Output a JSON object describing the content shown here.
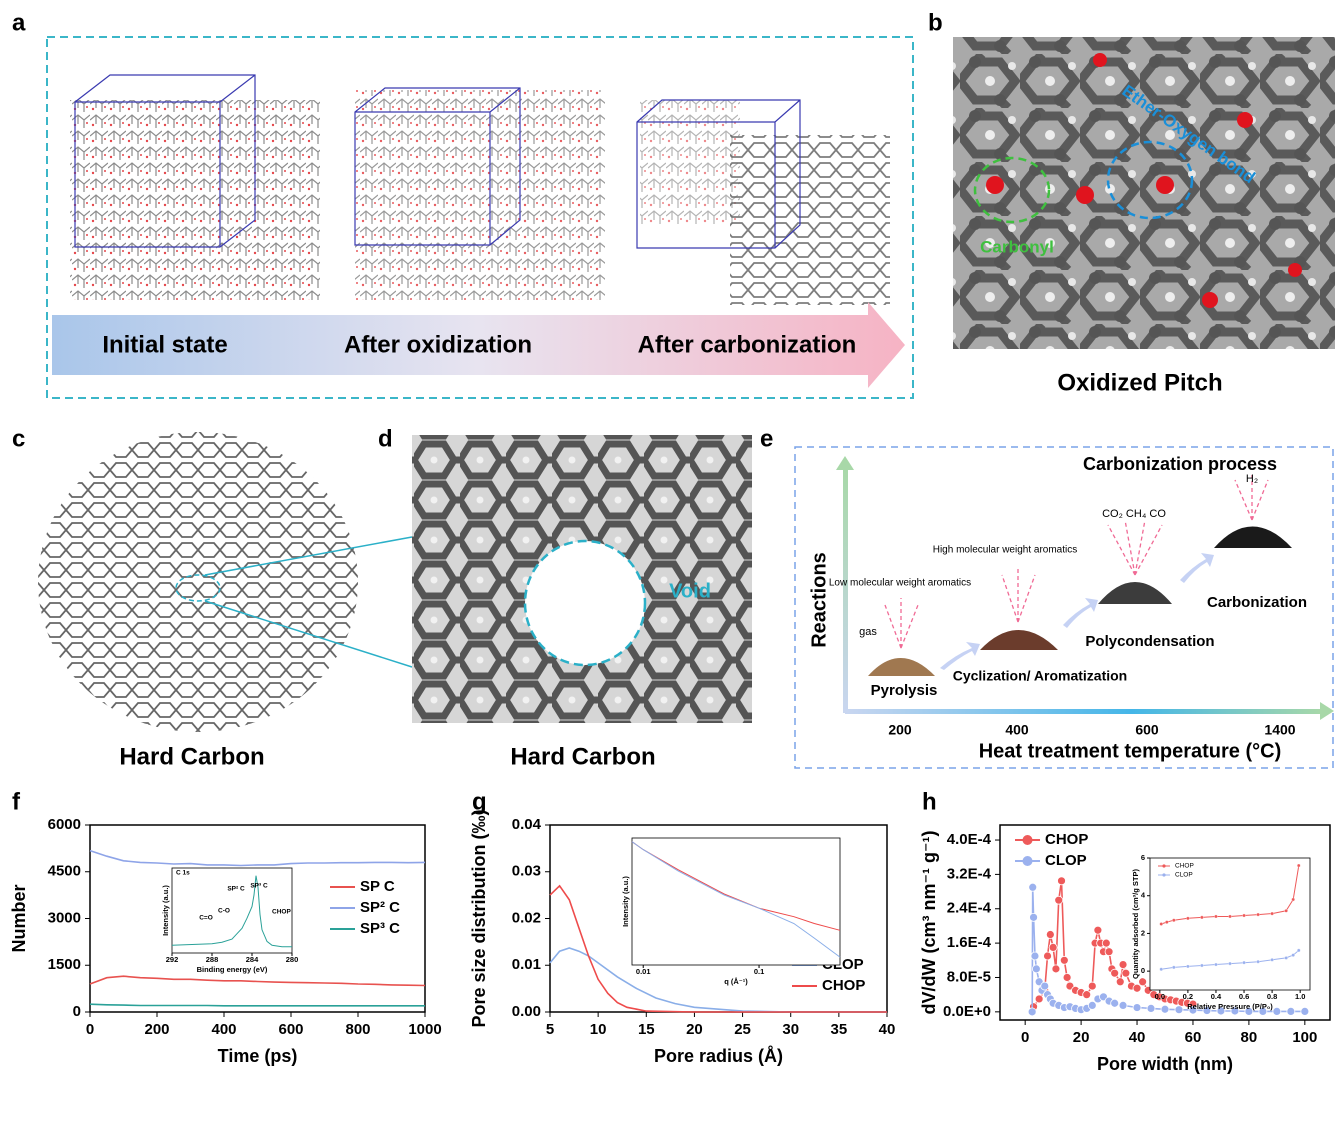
{
  "panels": {
    "a": {
      "label": "a",
      "stages": [
        "Initial state",
        "After oxidization",
        "After carbonization"
      ]
    },
    "b": {
      "label": "b",
      "annotations": [
        "Ether-Oxygen bond",
        "Carbonyl"
      ],
      "caption": "Oxidized Pitch"
    },
    "c": {
      "label": "c",
      "caption": "Hard Carbon"
    },
    "d": {
      "label": "d",
      "annotation": "Void",
      "caption": "Hard Carbon"
    },
    "e": {
      "label": "e",
      "title": "Carbonization process",
      "ylabel": "Reactions",
      "xlabel": "Heat treatment temperature (°C)",
      "xticks": [
        200,
        400,
        600,
        1400
      ],
      "stages": [
        "Pyrolysis",
        "Cyclization/ Aromatization",
        "Polycondensation",
        "Carbonization"
      ],
      "releases": [
        "gas",
        "Low molecular weight aromatics",
        "High molecular weight aromatics",
        "CO₂ CH₄ CO",
        "H₂"
      ]
    }
  },
  "chart_data": [
    {
      "type": "line",
      "label": "f",
      "xlabel": "Time (ps)",
      "ylabel": "Number",
      "xlim": [
        0,
        1000
      ],
      "ylim": [
        0,
        6000
      ],
      "xticks": [
        0,
        200,
        400,
        600,
        800,
        1000
      ],
      "yticks": [
        0,
        1500,
        3000,
        4500,
        6000
      ],
      "legend": "center right",
      "series": [
        {
          "name": "SP C",
          "color": "#e8524f",
          "x": [
            0,
            50,
            100,
            150,
            200,
            250,
            300,
            350,
            400,
            450,
            500,
            550,
            600,
            650,
            700,
            750,
            800,
            850,
            900,
            950,
            1000
          ],
          "values": [
            900,
            1100,
            1150,
            1100,
            1080,
            1050,
            1050,
            1020,
            1000,
            1000,
            980,
            960,
            950,
            940,
            930,
            920,
            900,
            890,
            870,
            860,
            850
          ]
        },
        {
          "name": "SP² C",
          "color": "#8ea4e8",
          "x": [
            0,
            50,
            100,
            150,
            200,
            250,
            300,
            350,
            400,
            450,
            500,
            550,
            600,
            650,
            700,
            750,
            800,
            850,
            900,
            950,
            1000
          ],
          "values": [
            5180,
            5000,
            4850,
            4800,
            4780,
            4750,
            4760,
            4720,
            4720,
            4700,
            4720,
            4720,
            4760,
            4780,
            4780,
            4790,
            4790,
            4800,
            4800,
            4790,
            4800
          ]
        },
        {
          "name": "SP³ C",
          "color": "#2aa198",
          "x": [
            0,
            50,
            100,
            150,
            200,
            250,
            300,
            350,
            400,
            450,
            500,
            550,
            600,
            650,
            700,
            750,
            800,
            850,
            900,
            950,
            1000
          ],
          "values": [
            250,
            230,
            220,
            210,
            210,
            210,
            210,
            210,
            200,
            200,
            200,
            200,
            200,
            200,
            200,
            200,
            200,
            200,
            200,
            200,
            200
          ]
        }
      ],
      "inset": {
        "type": "line",
        "xlabel": "Binding energy (eV)",
        "ylabel": "Intensity (a.u.)",
        "xlim": [
          292,
          280
        ],
        "ylim": [
          0,
          1.1
        ],
        "xticks": [
          292,
          288,
          284,
          280
        ],
        "annotations": [
          "C 1s",
          "CHOP",
          "C=O",
          "C-O",
          "SP² C",
          "SP³ C"
        ],
        "series": [
          {
            "name": null,
            "color": "#2aa198",
            "x": [
              292,
              290,
              288,
              287,
              286,
              285.5,
              285,
              284.5,
              284,
              283.8,
              283.6,
              283.4,
              283.2,
              283,
              282.5,
              282,
              281,
              280
            ],
            "values": [
              0.1,
              0.11,
              0.12,
              0.14,
              0.18,
              0.25,
              0.32,
              0.45,
              0.6,
              0.75,
              1.0,
              0.85,
              0.5,
              0.3,
              0.15,
              0.1,
              0.08,
              0.08
            ]
          }
        ]
      }
    },
    {
      "type": "line",
      "label": "g",
      "xlabel": "Pore radius (Å)",
      "ylabel": "Pore size distribution (‰)",
      "xlim": [
        5,
        40
      ],
      "ylim": [
        0,
        0.04
      ],
      "xticks": [
        5,
        10,
        15,
        20,
        25,
        30,
        35,
        40
      ],
      "yticks": [
        {
          "value": 0,
          "label": "0.00"
        },
        0.01,
        0.02,
        0.03,
        0.04
      ],
      "legend": "lower right",
      "series": [
        {
          "name": "CLOP",
          "color": "#8aaee8",
          "x": [
            5,
            6,
            7,
            8,
            9,
            10,
            12,
            14,
            16,
            18,
            20,
            25,
            30,
            40
          ],
          "values": [
            0.0105,
            0.013,
            0.0137,
            0.013,
            0.012,
            0.0105,
            0.0075,
            0.005,
            0.003,
            0.0018,
            0.001,
            0.0002,
            0,
            0
          ]
        },
        {
          "name": "CHOP",
          "color": "#ee4b4b",
          "x": [
            5,
            6,
            7,
            8,
            9,
            10,
            11,
            12,
            13,
            15,
            20,
            40
          ],
          "values": [
            0.025,
            0.027,
            0.024,
            0.018,
            0.012,
            0.007,
            0.004,
            0.002,
            0.001,
            0.0002,
            0,
            0
          ]
        }
      ],
      "inset": {
        "type": "line",
        "xlabel": "q (Å⁻¹)",
        "ylabel": "Intensity (a.u.)",
        "xlog": true,
        "ylog": true,
        "xlim": [
          0.008,
          0.5
        ],
        "ylim": [
          0.005,
          10
        ],
        "xticks": [
          0.01,
          0.1
        ],
        "series": [
          {
            "name": null,
            "color": "#ee4b4b",
            "x": [
              0.008,
              0.01,
              0.02,
              0.05,
              0.1,
              0.2,
              0.3,
              0.5
            ],
            "values": [
              8,
              5,
              1.5,
              0.35,
              0.15,
              0.09,
              0.06,
              0.04
            ]
          },
          {
            "name": null,
            "color": "#8aaee8",
            "x": [
              0.008,
              0.01,
              0.02,
              0.05,
              0.1,
              0.2,
              0.3,
              0.5
            ],
            "values": [
              8,
              5,
              1.4,
              0.33,
              0.15,
              0.06,
              0.025,
              0.008
            ]
          }
        ]
      }
    },
    {
      "type": "line",
      "label": "h",
      "xlabel": "Pore width (nm)",
      "ylabel": "dV/dW (cm³ nm⁻¹ g⁻¹)",
      "xlim": [
        -9,
        109
      ],
      "ylim": [
        -1.9e-05,
        0.000435
      ],
      "xticks": [
        0,
        20,
        40,
        60,
        80,
        100
      ],
      "yticks": [
        {
          "value": 0,
          "label": "0.0E+0"
        },
        {
          "value": 8e-05,
          "label": "8.0E-5"
        },
        {
          "value": 0.00016,
          "label": "1.6E-4"
        },
        {
          "value": 0.00024,
          "label": "2.4E-4"
        },
        {
          "value": 0.00032,
          "label": "3.2E-4"
        },
        {
          "value": 0.0004,
          "label": "4.0E-4"
        }
      ],
      "legend": "upper left",
      "markers": true,
      "series": [
        {
          "name": "CHOP",
          "color": "#ee5a5a",
          "x": [
            3,
            5,
            7,
            8,
            9,
            10,
            11,
            12,
            13,
            14,
            15,
            16,
            18,
            20,
            22,
            24,
            25,
            26,
            27,
            28,
            29,
            30,
            31,
            32,
            34,
            35,
            36,
            38,
            40,
            42,
            44,
            46,
            48,
            50,
            52,
            54,
            56,
            58,
            60
          ],
          "values": [
            1.2e-05,
            3e-05,
            5e-05,
            0.00013,
            0.00018,
            0.00015,
            0.0001,
            0.00026,
            0.000305,
            0.00012,
            8e-05,
            6e-05,
            5e-05,
            4.5e-05,
            4e-05,
            6e-05,
            0.00016,
            0.00019,
            0.00016,
            0.00014,
            0.00016,
            0.00014,
            0.0001,
            9e-05,
            7e-05,
            0.00011,
            9e-05,
            6e-05,
            5.5e-05,
            7e-05,
            5e-05,
            4e-05,
            3.5e-05,
            3e-05,
            2.8e-05,
            2.5e-05,
            2.2e-05,
            2e-05,
            1.8e-05
          ]
        },
        {
          "name": "CLOP",
          "color": "#9bb1ee",
          "x": [
            2.5,
            2.7,
            3,
            3.5,
            4,
            5,
            6,
            7,
            8,
            9,
            10,
            12,
            14,
            16,
            18,
            20,
            22,
            24,
            26,
            28,
            30,
            32,
            35,
            40,
            45,
            50,
            55,
            60,
            65,
            70,
            75,
            80,
            85,
            90,
            95,
            100
          ],
          "values": [
            0,
            0.00029,
            0.00022,
            0.00013,
            0.0001,
            7e-05,
            5e-05,
            6e-05,
            4e-05,
            3e-05,
            2e-05,
            1.5e-05,
            1e-05,
            1.2e-05,
            8e-06,
            5e-06,
            8e-06,
            1.5e-05,
            3e-05,
            3.5e-05,
            2.5e-05,
            2e-05,
            1.5e-05,
            1e-05,
            8e-06,
            6e-06,
            5e-06,
            4e-06,
            3e-06,
            2e-06,
            2e-06,
            1e-06,
            1e-06,
            1e-06,
            1e-06,
            1e-06
          ]
        }
      ],
      "inset": {
        "type": "line",
        "xlabel": "Relative Pressure (P/P₀)",
        "ylabel": "Quantity adsorbed (cm³/g STP)",
        "xlim": [
          -0.07,
          1.07
        ],
        "ylim": [
          -1,
          6
        ],
        "legend": "upper left",
        "markers": true,
        "xticks": [
          {
            "value": 0,
            "label": "0.0"
          },
          0.2,
          0.4,
          0.6,
          0.8,
          {
            "value": 1,
            "label": "1.0"
          }
        ],
        "yticks": [
          0,
          2,
          4,
          6
        ],
        "series": [
          {
            "name": "CHOP",
            "color": "#ee5a5a",
            "x": [
              0.01,
              0.05,
              0.1,
              0.2,
              0.3,
              0.4,
              0.5,
              0.6,
              0.7,
              0.8,
              0.9,
              0.95,
              0.99
            ],
            "values": [
              2.5,
              2.6,
              2.7,
              2.8,
              2.85,
              2.9,
              2.9,
              2.95,
              3.0,
              3.05,
              3.2,
              3.8,
              5.6
            ]
          },
          {
            "name": "CLOP",
            "color": "#9bb1ee",
            "x": [
              0.01,
              0.1,
              0.2,
              0.3,
              0.4,
              0.5,
              0.6,
              0.7,
              0.8,
              0.9,
              0.95,
              0.99
            ],
            "values": [
              0.1,
              0.2,
              0.25,
              0.3,
              0.35,
              0.4,
              0.45,
              0.5,
              0.6,
              0.7,
              0.85,
              1.1
            ]
          }
        ]
      }
    }
  ]
}
